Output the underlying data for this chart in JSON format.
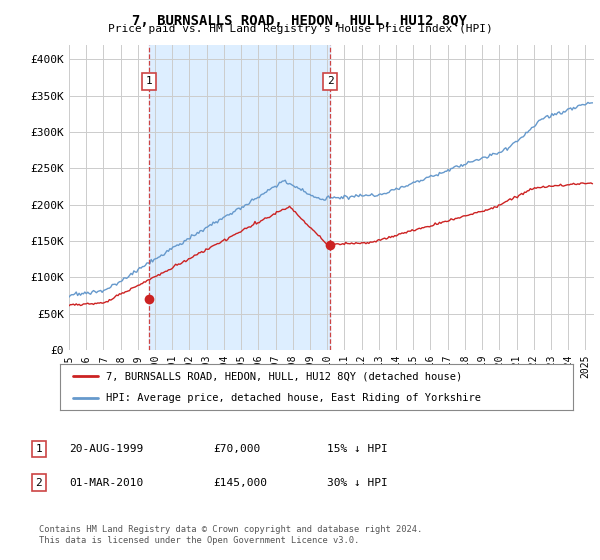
{
  "title": "7, BURNSALLS ROAD, HEDON, HULL, HU12 8QY",
  "subtitle": "Price paid vs. HM Land Registry's House Price Index (HPI)",
  "ylabel_ticks": [
    "£0",
    "£50K",
    "£100K",
    "£150K",
    "£200K",
    "£250K",
    "£300K",
    "£350K",
    "£400K"
  ],
  "ytick_values": [
    0,
    50000,
    100000,
    150000,
    200000,
    250000,
    300000,
    350000,
    400000
  ],
  "ylim": [
    0,
    420000
  ],
  "xlim_start": 1995.0,
  "xlim_end": 2025.5,
  "sale1_date": 1999.64,
  "sale1_price": 70000,
  "sale1_label": "1",
  "sale2_date": 2010.17,
  "sale2_price": 145000,
  "sale2_label": "2",
  "hpi_color": "#6699cc",
  "price_color": "#cc2222",
  "dashed_color": "#cc4444",
  "shade_color": "#ddeeff",
  "background_color": "#ffffff",
  "grid_color": "#cccccc",
  "legend_label_price": "7, BURNSALLS ROAD, HEDON, HULL, HU12 8QY (detached house)",
  "legend_label_hpi": "HPI: Average price, detached house, East Riding of Yorkshire",
  "footnote": "Contains HM Land Registry data © Crown copyright and database right 2024.\nThis data is licensed under the Open Government Licence v3.0.",
  "table_rows": [
    {
      "label": "1",
      "date": "20-AUG-1999",
      "price": "£70,000",
      "hpi_rel": "15% ↓ HPI"
    },
    {
      "label": "2",
      "date": "01-MAR-2010",
      "price": "£145,000",
      "hpi_rel": "30% ↓ HPI"
    }
  ]
}
